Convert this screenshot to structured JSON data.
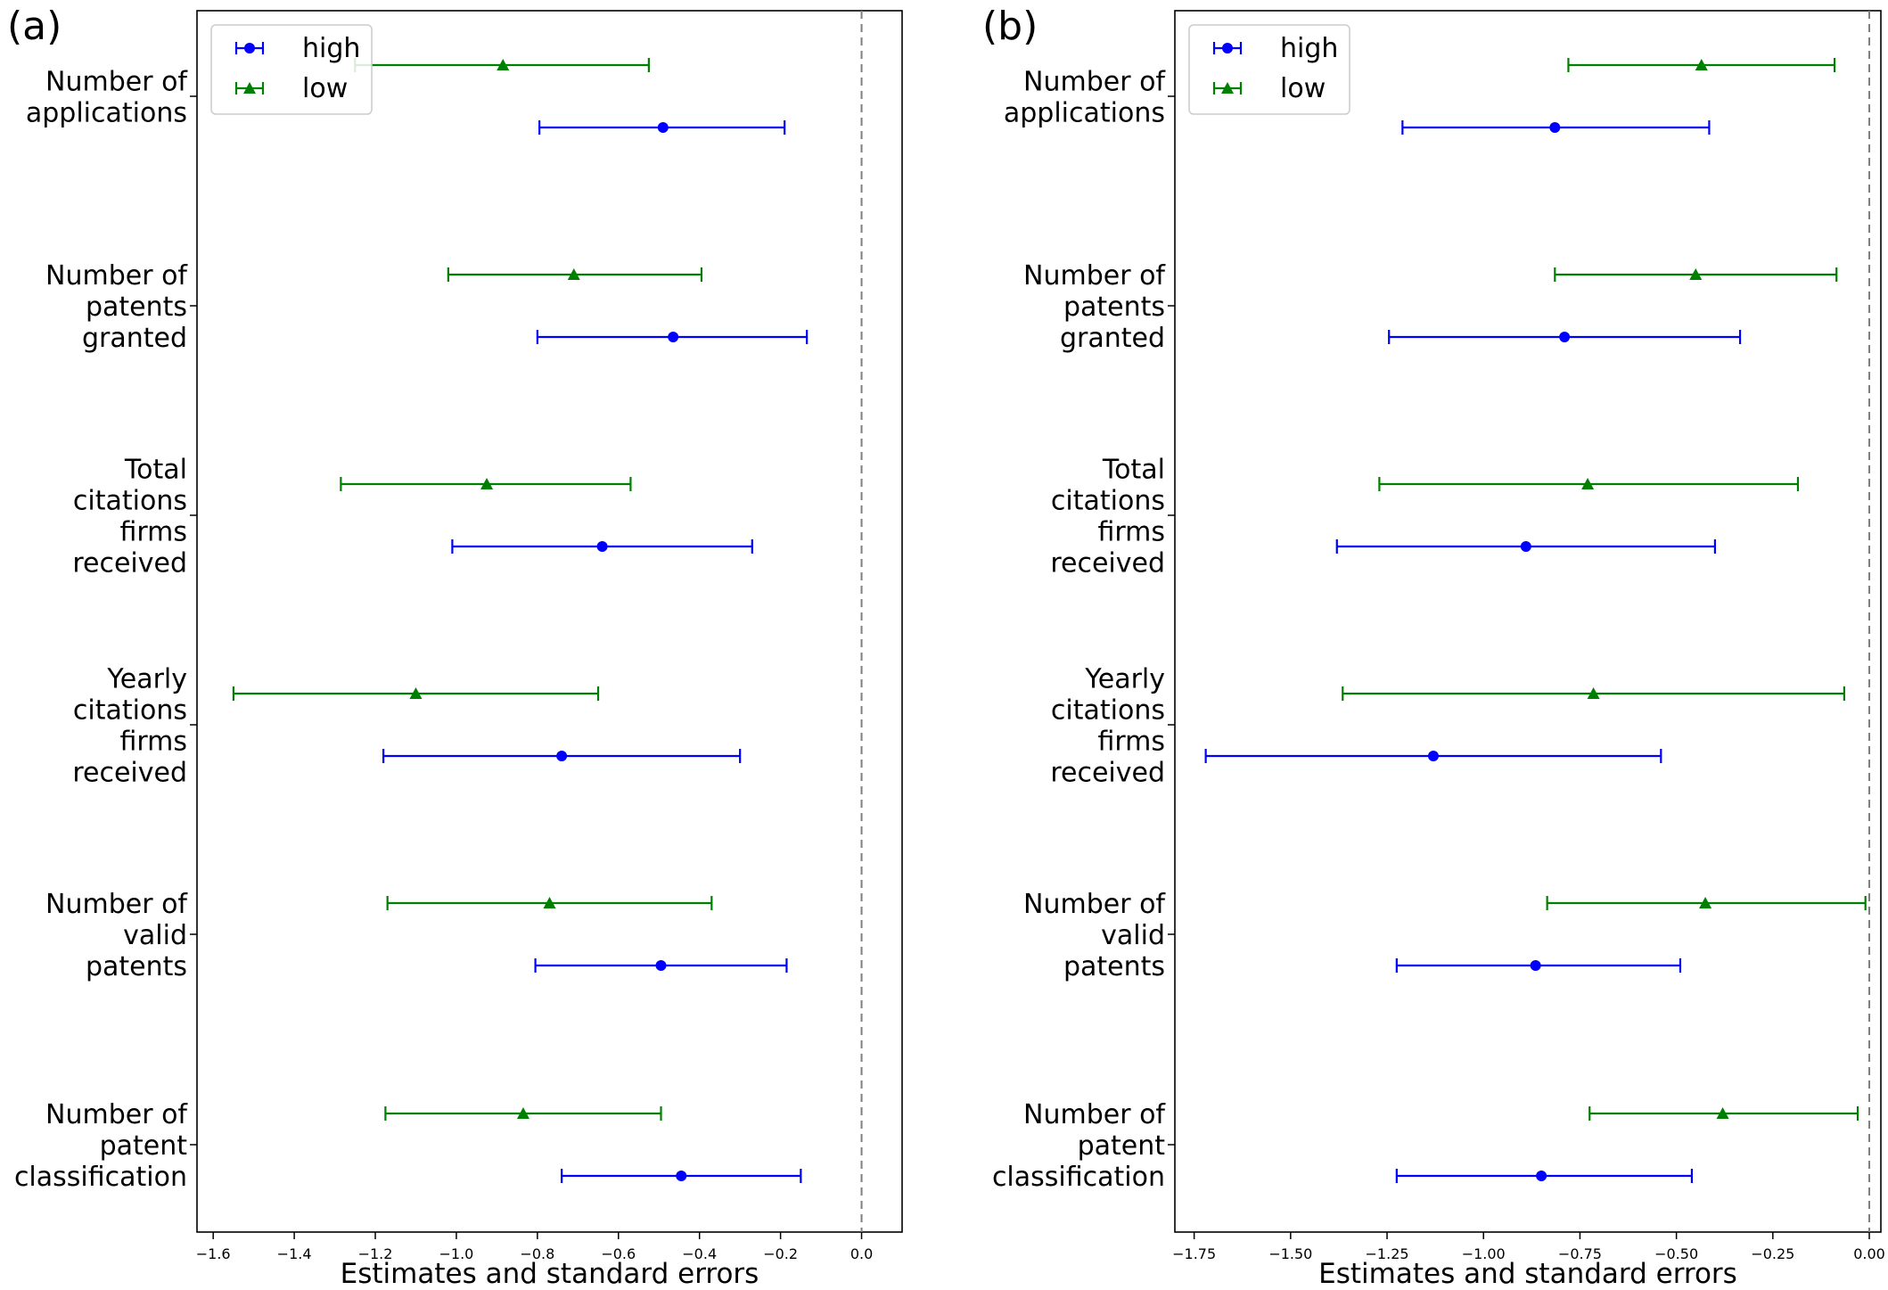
{
  "figure": {
    "colors": {
      "high": "#0000ff",
      "low": "#008000",
      "zero_line": "#7f7f7f"
    }
  },
  "chart_data": [
    {
      "type": "errorbar",
      "panel_label": "(a)",
      "orientation": "horizontal",
      "xlabel": "Estimates and standard errors",
      "xlim": [
        -1.64,
        0.1
      ],
      "xticks": [
        -1.6,
        -1.4,
        -1.2,
        -1.0,
        -0.8,
        -0.6,
        -0.4,
        -0.2,
        0.0
      ],
      "xtick_labels": [
        "−1.6",
        "−1.4",
        "−1.2",
        "−1.0",
        "−0.8",
        "−0.6",
        "−0.4",
        "−0.2",
        "0.0"
      ],
      "reference_line": 0.0,
      "legend": {
        "position": "top-left",
        "entries": [
          "high",
          "low"
        ]
      },
      "categories": [
        [
          "Number of",
          "applications"
        ],
        [
          "Number of",
          "patents",
          "granted"
        ],
        [
          "Total",
          "citations",
          "firms",
          "received"
        ],
        [
          "Yearly",
          "citations",
          "firms",
          "received"
        ],
        [
          "Number of",
          "valid",
          "patents"
        ],
        [
          "Number of",
          "patent",
          "classification"
        ]
      ],
      "series": [
        {
          "name": "high",
          "marker": "circle",
          "estimates": [
            -0.49,
            -0.465,
            -0.64,
            -0.74,
            -0.495,
            -0.445
          ],
          "lower": [
            -0.795,
            -0.8,
            -1.01,
            -1.18,
            -0.805,
            -0.74
          ],
          "upper": [
            -0.19,
            -0.135,
            -0.27,
            -0.3,
            -0.185,
            -0.15
          ]
        },
        {
          "name": "low",
          "marker": "triangle",
          "estimates": [
            -0.885,
            -0.71,
            -0.925,
            -1.1,
            -0.77,
            -0.835
          ],
          "lower": [
            -1.25,
            -1.02,
            -1.285,
            -1.55,
            -1.17,
            -1.175
          ],
          "upper": [
            -0.525,
            -0.395,
            -0.57,
            -0.65,
            -0.37,
            -0.495
          ]
        }
      ]
    },
    {
      "type": "errorbar",
      "panel_label": "(b)",
      "orientation": "horizontal",
      "xlabel": "Estimates and standard errors",
      "xlim": [
        -1.8,
        0.03
      ],
      "xticks": [
        -1.75,
        -1.5,
        -1.25,
        -1.0,
        -0.75,
        -0.5,
        -0.25,
        0.0
      ],
      "xtick_labels": [
        "−1.75",
        "−1.50",
        "−1.25",
        "−1.00",
        "−0.75",
        "−0.50",
        "−0.25",
        "0.00"
      ],
      "reference_line": 0.0,
      "legend": {
        "position": "top-left",
        "entries": [
          "high",
          "low"
        ]
      },
      "categories": [
        [
          "Number of",
          "applications"
        ],
        [
          "Number of",
          "patents",
          "granted"
        ],
        [
          "Total",
          "citations",
          "firms",
          "received"
        ],
        [
          "Yearly",
          "citations",
          "firms",
          "received"
        ],
        [
          "Number of",
          "valid",
          "patents"
        ],
        [
          "Number of",
          "patent",
          "classification"
        ]
      ],
      "series": [
        {
          "name": "high",
          "marker": "circle",
          "estimates": [
            -0.815,
            -0.79,
            -0.89,
            -1.13,
            -0.865,
            -0.85
          ],
          "lower": [
            -1.21,
            -1.245,
            -1.38,
            -1.72,
            -1.225,
            -1.225
          ],
          "upper": [
            -0.415,
            -0.335,
            -0.4,
            -0.54,
            -0.49,
            -0.46
          ]
        },
        {
          "name": "low",
          "marker": "triangle",
          "estimates": [
            -0.435,
            -0.45,
            -0.73,
            -0.715,
            -0.425,
            -0.38
          ],
          "lower": [
            -0.78,
            -0.815,
            -1.27,
            -1.365,
            -0.835,
            -0.725
          ],
          "upper": [
            -0.09,
            -0.085,
            -0.185,
            -0.065,
            -0.01,
            -0.03
          ]
        }
      ]
    }
  ]
}
